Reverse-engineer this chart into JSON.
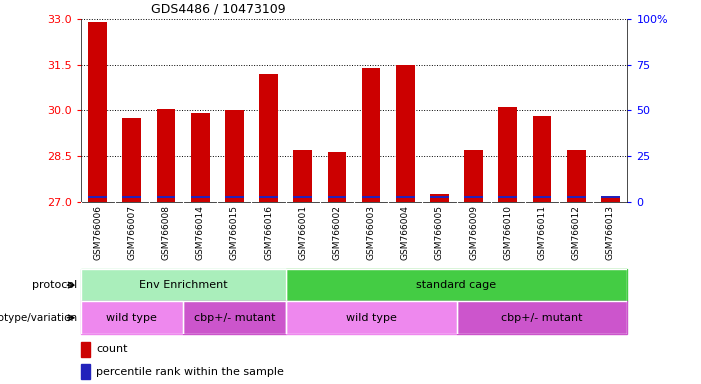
{
  "title": "GDS4486 / 10473109",
  "samples": [
    "GSM766006",
    "GSM766007",
    "GSM766008",
    "GSM766014",
    "GSM766015",
    "GSM766016",
    "GSM766001",
    "GSM766002",
    "GSM766003",
    "GSM766004",
    "GSM766005",
    "GSM766009",
    "GSM766010",
    "GSM766011",
    "GSM766012",
    "GSM766013"
  ],
  "counts": [
    32.9,
    29.75,
    30.05,
    29.9,
    30.0,
    31.2,
    28.7,
    28.62,
    31.4,
    31.5,
    27.25,
    28.7,
    30.1,
    29.8,
    28.7,
    27.2
  ],
  "percentile_vals": [
    5,
    5,
    5,
    5,
    5,
    5,
    5,
    5,
    5,
    8,
    2,
    5,
    5,
    5,
    3,
    3
  ],
  "y_min": 27,
  "y_max": 33,
  "y_ticks": [
    27,
    28.5,
    30,
    31.5,
    33
  ],
  "y2_ticks": [
    0,
    25,
    50,
    75,
    100
  ],
  "bar_color": "#cc0000",
  "blue_color": "#2222bb",
  "bg_color": "#ffffff",
  "plot_bg_color": "#ffffff",
  "sample_label_bg": "#d8d8d8",
  "protocol_groups": [
    {
      "label": "Env Enrichment",
      "start": 0,
      "end": 6,
      "color": "#aaeebb"
    },
    {
      "label": "standard cage",
      "start": 6,
      "end": 16,
      "color": "#44cc44"
    }
  ],
  "genotype_groups": [
    {
      "label": "wild type",
      "start": 0,
      "end": 3,
      "color": "#ee88ee"
    },
    {
      "label": "cbp+/- mutant",
      "start": 3,
      "end": 6,
      "color": "#cc55cc"
    },
    {
      "label": "wild type",
      "start": 6,
      "end": 11,
      "color": "#ee88ee"
    },
    {
      "label": "cbp+/- mutant",
      "start": 11,
      "end": 16,
      "color": "#cc55cc"
    }
  ],
  "legend_count_color": "#cc0000",
  "legend_pct_color": "#2222bb",
  "label_protocol": "protocol",
  "label_genotype": "genotype/variation"
}
